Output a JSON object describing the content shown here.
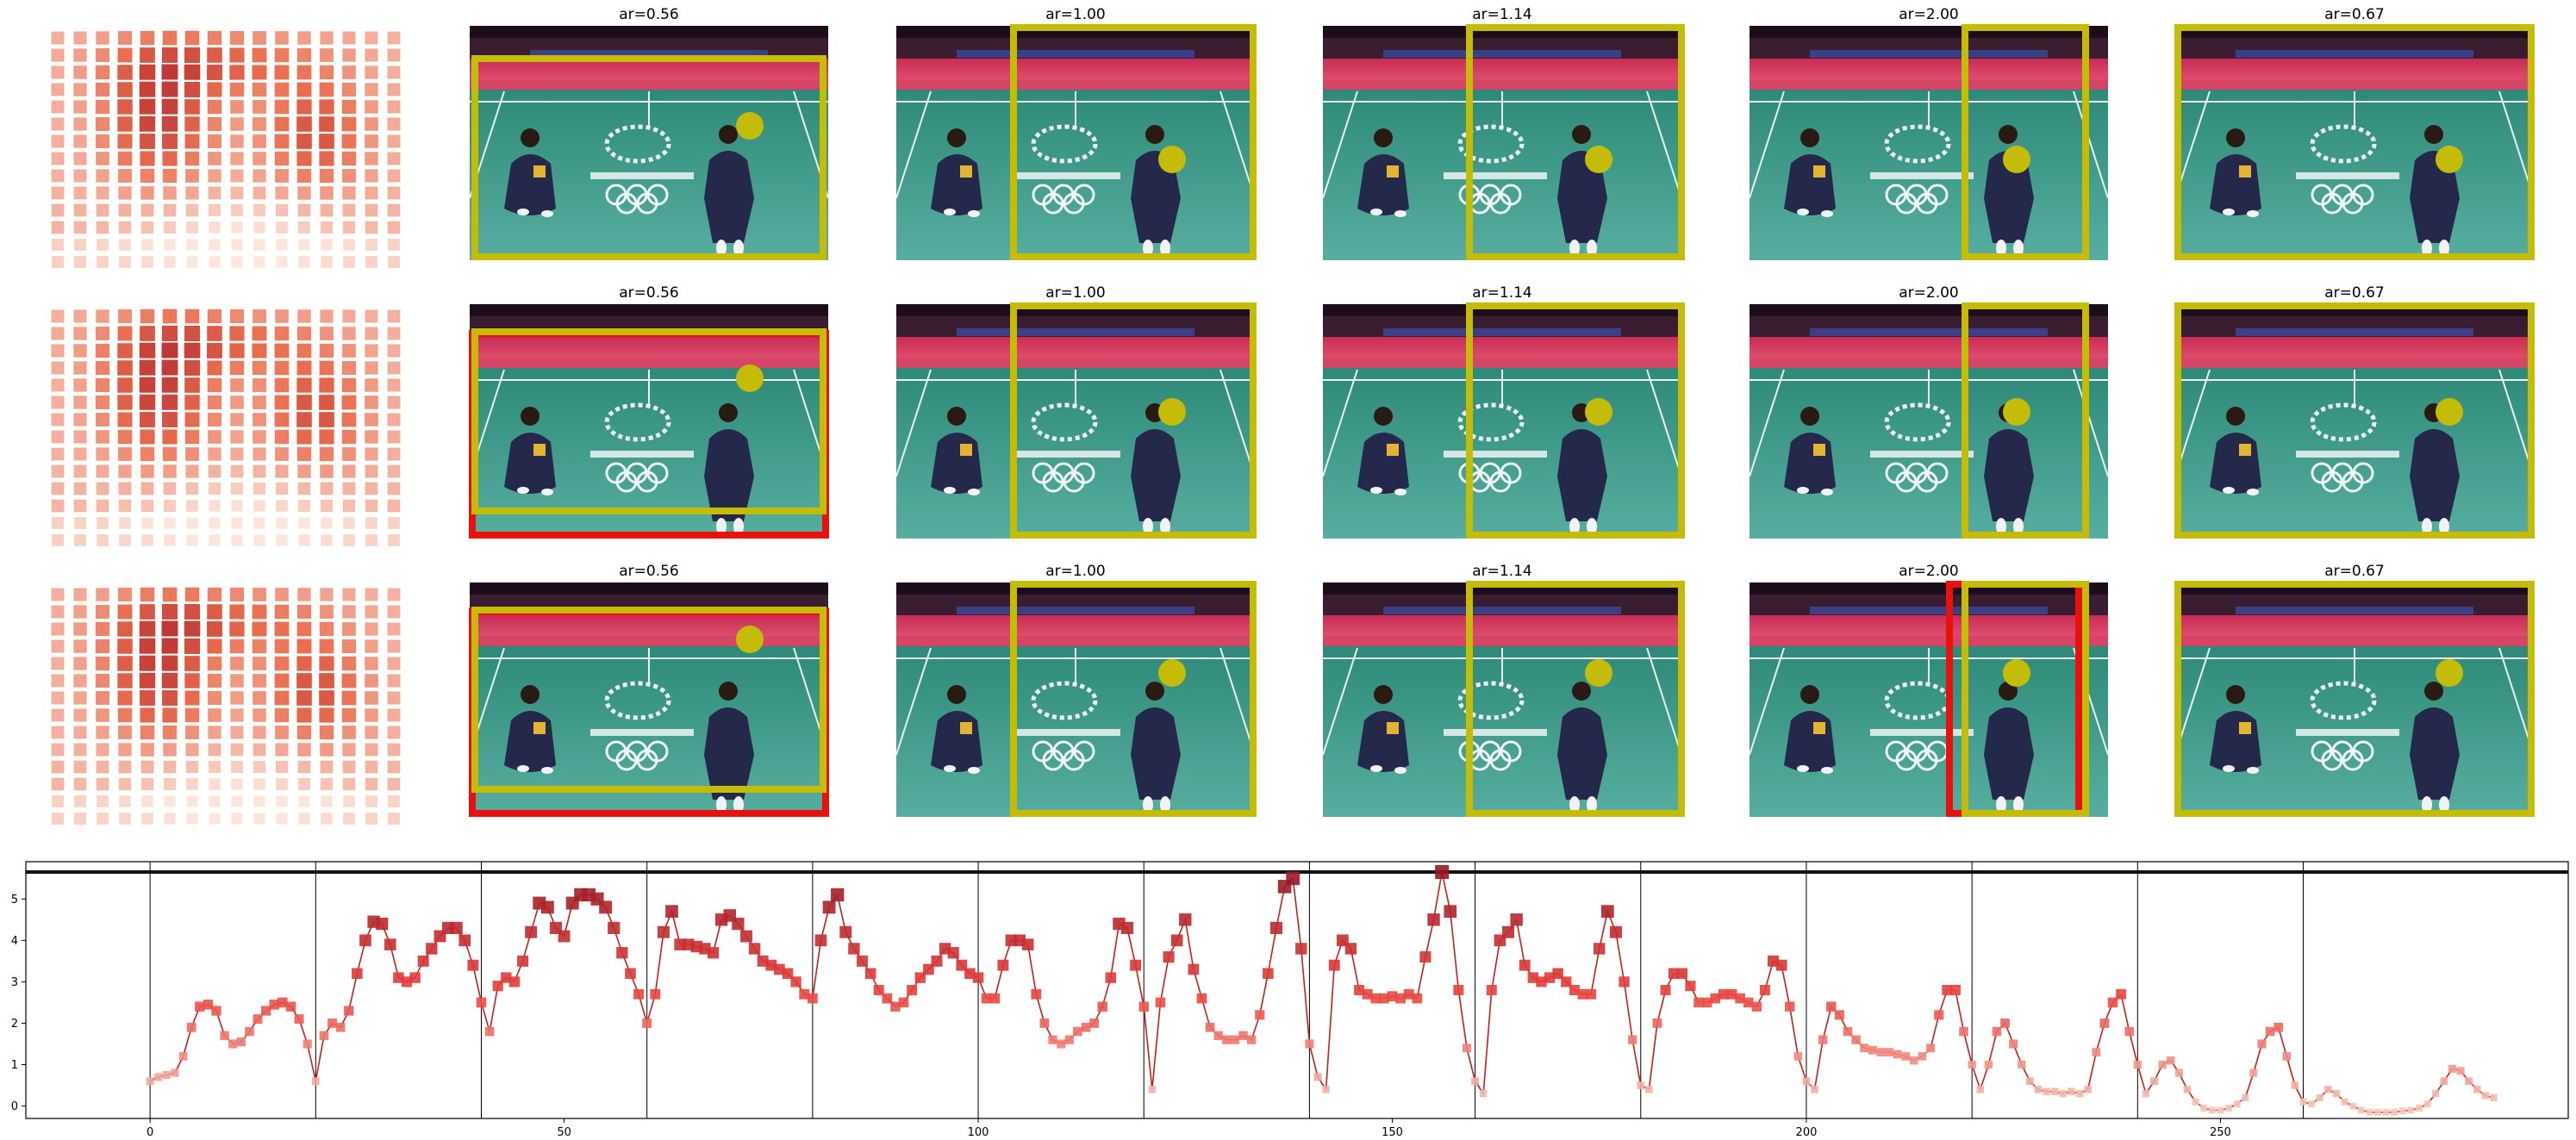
{
  "colors": {
    "box_yellow": "#c4bc06",
    "box_red": "#e8110d",
    "stand_dark": "#3b1d32",
    "court_pink": "#d63a60",
    "court_green": "#3e9b88",
    "line": "#c41f24"
  },
  "grid": {
    "rows": [
      {
        "panels": [
          {
            "title": "ar=0.56",
            "boxes": [
              "yellow"
            ]
          },
          {
            "title": "ar=1.00",
            "boxes": [
              "yellow"
            ]
          },
          {
            "title": "ar=1.14",
            "boxes": [
              "yellow"
            ]
          },
          {
            "title": "ar=2.00",
            "boxes": [
              "yellow"
            ]
          },
          {
            "title": "ar=0.67",
            "boxes": [
              "yellow"
            ]
          }
        ]
      },
      {
        "panels": [
          {
            "title": "ar=0.56",
            "boxes": [
              "red",
              "yellow"
            ]
          },
          {
            "title": "ar=1.00",
            "boxes": [
              "yellow"
            ]
          },
          {
            "title": "ar=1.14",
            "boxes": [
              "yellow"
            ]
          },
          {
            "title": "ar=2.00",
            "boxes": [
              "yellow"
            ]
          },
          {
            "title": "ar=0.67",
            "boxes": [
              "yellow"
            ]
          }
        ]
      },
      {
        "panels": [
          {
            "title": "ar=0.56",
            "boxes": [
              "red",
              "yellow"
            ]
          },
          {
            "title": "ar=1.00",
            "boxes": [
              "yellow"
            ]
          },
          {
            "title": "ar=1.14",
            "boxes": [
              "yellow"
            ]
          },
          {
            "title": "ar=2.00",
            "boxes": [
              "red",
              "yellow"
            ]
          },
          {
            "title": "ar=0.67",
            "boxes": [
              "yellow"
            ]
          }
        ]
      }
    ]
  },
  "chart_data": {
    "type": "line",
    "title": "",
    "xlabel": "",
    "ylabel": "",
    "xlim": [
      -15,
      292
    ],
    "ylim": [
      -0.3,
      5.9
    ],
    "xticks": [
      0,
      50,
      100,
      150,
      200,
      250
    ],
    "yticks": [
      0,
      1,
      2,
      3,
      4,
      5
    ],
    "grid": false,
    "vlines": [
      0,
      20,
      40,
      60,
      80,
      100,
      120,
      140,
      160,
      180,
      200,
      220,
      240,
      260
    ],
    "hline": 5.65,
    "y": [
      0.6,
      0.7,
      0.75,
      0.8,
      1.2,
      1.9,
      2.4,
      2.45,
      2.3,
      1.7,
      1.5,
      1.55,
      1.8,
      2.1,
      2.3,
      2.45,
      2.5,
      2.4,
      2.1,
      1.5,
      0.6,
      1.7,
      2.0,
      1.9,
      2.3,
      3.2,
      4.0,
      4.45,
      4.4,
      3.9,
      3.1,
      3.0,
      3.1,
      3.5,
      3.8,
      4.1,
      4.3,
      4.3,
      4.0,
      3.4,
      2.5,
      1.8,
      2.9,
      3.1,
      3.0,
      3.5,
      4.2,
      4.9,
      4.8,
      4.3,
      4.1,
      4.9,
      5.1,
      5.1,
      5.0,
      4.8,
      4.3,
      3.7,
      3.2,
      2.7,
      2.0,
      2.7,
      4.2,
      4.7,
      3.9,
      3.9,
      3.85,
      3.8,
      3.7,
      4.5,
      4.6,
      4.4,
      4.1,
      3.8,
      3.5,
      3.4,
      3.3,
      3.2,
      3.0,
      2.7,
      2.6,
      4.0,
      4.8,
      5.1,
      4.2,
      3.8,
      3.5,
      3.2,
      2.8,
      2.6,
      2.4,
      2.5,
      2.8,
      3.1,
      3.3,
      3.5,
      3.8,
      3.7,
      3.4,
      3.2,
      3.1,
      2.6,
      2.6,
      3.4,
      4.0,
      4.0,
      3.9,
      2.7,
      2.0,
      1.6,
      1.5,
      1.6,
      1.8,
      1.9,
      2.0,
      2.4,
      3.1,
      4.4,
      4.3,
      3.4,
      2.4,
      0.4,
      2.5,
      3.6,
      4.0,
      4.5,
      3.3,
      2.6,
      1.9,
      1.7,
      1.6,
      1.6,
      1.7,
      1.6,
      2.2,
      3.2,
      4.3,
      5.3,
      5.5,
      3.8,
      1.5,
      0.7,
      0.4,
      3.4,
      4.0,
      3.8,
      2.8,
      2.7,
      2.6,
      2.6,
      2.65,
      2.6,
      2.7,
      2.6,
      3.6,
      4.5,
      5.65,
      4.7,
      2.8,
      1.4,
      0.6,
      0.3,
      2.8,
      4.0,
      4.2,
      4.5,
      3.4,
      3.1,
      3.0,
      3.1,
      3.2,
      3.0,
      2.8,
      2.7,
      2.7,
      3.8,
      4.7,
      4.2,
      3.0,
      1.6,
      0.5,
      0.4,
      2.0,
      2.8,
      3.2,
      3.2,
      2.9,
      2.5,
      2.5,
      2.6,
      2.7,
      2.7,
      2.6,
      2.5,
      2.4,
      2.8,
      3.5,
      3.4,
      2.4,
      1.2,
      0.6,
      0.4,
      1.6,
      2.4,
      2.2,
      1.8,
      1.6,
      1.4,
      1.35,
      1.3,
      1.3,
      1.25,
      1.2,
      1.1,
      1.2,
      1.4,
      2.2,
      2.8,
      2.8,
      1.8,
      1.0,
      0.4,
      1.0,
      1.8,
      2.0,
      1.5,
      1.0,
      0.6,
      0.4,
      0.35,
      0.35,
      0.3,
      0.35,
      0.3,
      0.4,
      1.3,
      2.0,
      2.5,
      2.7,
      1.8,
      1.0,
      0.3,
      0.6,
      1.0,
      1.1,
      0.8,
      0.4,
      0.1,
      -0.05,
      -0.1,
      -0.1,
      -0.05,
      0.05,
      0.2,
      0.8,
      1.5,
      1.8,
      1.9,
      1.2,
      0.5,
      0.1,
      0.05,
      0.2,
      0.4,
      0.3,
      0.1,
      0.0,
      -0.1,
      -0.15,
      -0.15,
      -0.15,
      -0.15,
      -0.12,
      -0.1,
      -0.05,
      0.05,
      0.3,
      0.6,
      0.9,
      0.85,
      0.6,
      0.4,
      0.25,
      0.2
    ]
  }
}
